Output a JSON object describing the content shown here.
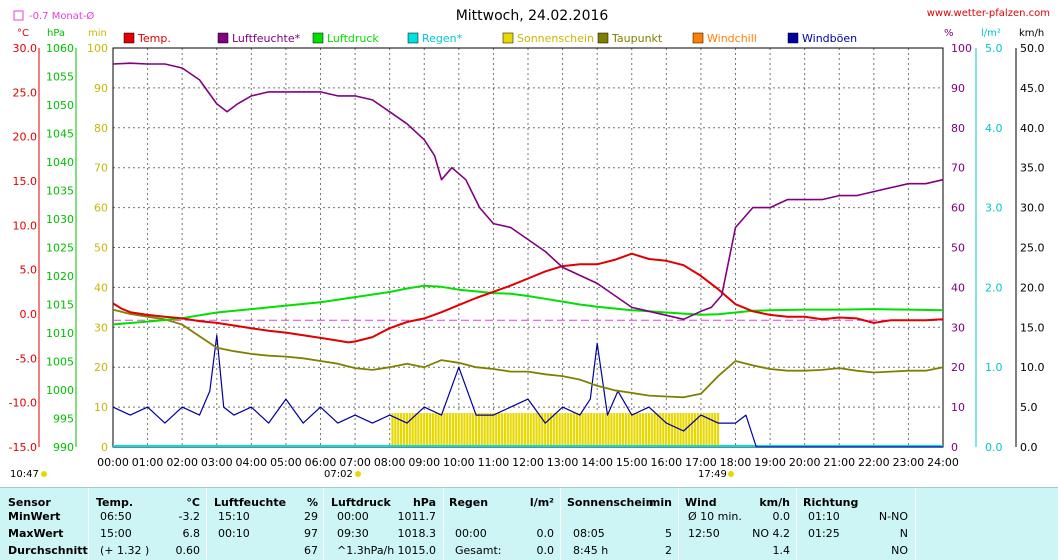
{
  "title": "Mittwoch, 24.02.2016",
  "site": "www.wetter-pfalzen.com",
  "month_avg_label": "-0.7 Monat-Ø",
  "units": {
    "temp": "°C",
    "pressure": "hPa",
    "minutes": "min",
    "percent": "%",
    "rain": "l/m²",
    "wind": "km/h"
  },
  "colors": {
    "temp": "#e00000",
    "humidity": "#800080",
    "pressure": "#00e000",
    "rain": "#00e0e0",
    "sun": "#e8d800",
    "dewpoint": "#808000",
    "windchill": "#ff8000",
    "gust": "#0000a0",
    "month_avg": "#e040e0"
  },
  "legend": [
    {
      "key": "temp",
      "label": "Temp."
    },
    {
      "key": "humidity",
      "label": "Luftfeuchte*"
    },
    {
      "key": "pressure",
      "label": "Luftdruck"
    },
    {
      "key": "rain",
      "label": "Regen*"
    },
    {
      "key": "sun",
      "label": "Sonnenschein"
    },
    {
      "key": "dewpoint",
      "label": "Taupunkt"
    },
    {
      "key": "windchill",
      "label": "Windchill"
    },
    {
      "key": "gust",
      "label": "Windböen"
    }
  ],
  "axis_ticks": {
    "temp": [
      "30.0",
      "25.0",
      "20.0",
      "15.0",
      "10.0",
      "5.0",
      "0.0",
      "-5.0",
      "-10.0",
      "-15.0"
    ],
    "pressure": [
      "1060",
      "1055",
      "1050",
      "1045",
      "1040",
      "1035",
      "1030",
      "1025",
      "1020",
      "1015",
      "1010",
      "1005",
      "1000",
      "995",
      "990"
    ],
    "minutes": [
      "100",
      "90",
      "80",
      "70",
      "60",
      "50",
      "40",
      "30",
      "20",
      "10",
      "0"
    ],
    "percent": [
      "100",
      "90",
      "80",
      "70",
      "60",
      "50",
      "40",
      "30",
      "20",
      "10",
      "0"
    ],
    "rain": [
      "5.0",
      "4.0",
      "3.0",
      "2.0",
      "1.0",
      "0.0"
    ],
    "wind": [
      "50.0",
      "45.0",
      "40.0",
      "35.0",
      "30.0",
      "25.0",
      "20.0",
      "15.0",
      "10.0",
      "5.0",
      "0.0"
    ],
    "hours": [
      "00:00",
      "01:00",
      "02:00",
      "03:00",
      "04:00",
      "05:00",
      "06:00",
      "07:00",
      "08:00",
      "09:00",
      "10:00",
      "11:00",
      "12:00",
      "13:00",
      "14:00",
      "15:00",
      "16:00",
      "17:00",
      "18:00",
      "19:00",
      "20:00",
      "21:00",
      "22:00",
      "23:00",
      "24:00"
    ]
  },
  "sun_times": {
    "moonrise": "10:47",
    "sunrise": "07:02",
    "sunset": "17:49"
  },
  "chart_data": {
    "type": "line",
    "title": "Mittwoch, 24.02.2016",
    "x_unit": "hours",
    "xlim": [
      0,
      24
    ],
    "ylim_temp": [
      -15,
      30
    ],
    "ylim_pressure": [
      990,
      1060
    ],
    "ylim_percent": [
      0,
      100
    ],
    "ylim_wind": [
      0,
      50
    ],
    "ylim_rain": [
      0,
      5
    ],
    "month_avg_temp": -0.7,
    "series": [
      {
        "name": "Temp.",
        "unit": "°C",
        "x": [
          0,
          0.25,
          0.5,
          1,
          1.5,
          2,
          2.5,
          3,
          3.5,
          4,
          4.5,
          5,
          5.5,
          6,
          6.5,
          6.8,
          7,
          7.5,
          8,
          8.5,
          9,
          9.5,
          10,
          10.5,
          11,
          11.5,
          12,
          12.5,
          13,
          13.5,
          14,
          14.5,
          15,
          15.5,
          16,
          16.5,
          17,
          17.5,
          18,
          18.5,
          19,
          19.5,
          20,
          20.5,
          21,
          21.5,
          22,
          22.5,
          23,
          23.5,
          24
        ],
        "values": [
          1.2,
          0.6,
          0.2,
          -0.1,
          -0.3,
          -0.5,
          -0.8,
          -1.0,
          -1.3,
          -1.6,
          -1.9,
          -2.1,
          -2.4,
          -2.7,
          -3.0,
          -3.2,
          -3.1,
          -2.6,
          -1.6,
          -0.9,
          -0.5,
          0.2,
          1.0,
          1.8,
          2.5,
          3.2,
          4.0,
          4.8,
          5.4,
          5.6,
          5.6,
          6.1,
          6.8,
          6.2,
          6.0,
          5.5,
          4.3,
          2.8,
          1.1,
          0.3,
          -0.1,
          -0.3,
          -0.3,
          -0.6,
          -0.4,
          -0.5,
          -1.0,
          -0.7,
          -0.7,
          -0.7,
          -0.6
        ]
      },
      {
        "name": "Luftfeuchte*",
        "unit": "%",
        "x": [
          0,
          0.5,
          1,
          1.5,
          2,
          2.5,
          3,
          3.3,
          3.6,
          4,
          4.5,
          5,
          5.5,
          6,
          6.5,
          7,
          7.5,
          8,
          8.5,
          9,
          9.3,
          9.5,
          9.8,
          10.2,
          10.6,
          11,
          11.5,
          12,
          12.5,
          13,
          13.5,
          14,
          14.5,
          15,
          15.5,
          16,
          16.5,
          17,
          17.3,
          17.6,
          18,
          18.5,
          19,
          19.5,
          20,
          20.5,
          21,
          21.5,
          22,
          22.5,
          23,
          23.5,
          24
        ],
        "values": [
          96,
          96.2,
          96,
          96,
          95,
          92,
          86,
          84,
          86,
          88,
          89,
          89,
          89,
          89,
          88,
          88,
          87,
          84,
          81,
          77,
          73,
          67,
          70,
          67,
          60,
          56,
          55,
          52,
          49,
          45,
          43,
          41,
          38,
          35,
          34,
          33,
          32,
          34,
          35,
          38,
          55,
          60,
          60,
          62,
          62,
          62,
          63,
          63,
          64,
          65,
          66,
          66,
          67
        ]
      },
      {
        "name": "Luftdruck",
        "unit": "hPa",
        "x": [
          0,
          1,
          2,
          3,
          4,
          5,
          6,
          7,
          8,
          8.5,
          9,
          9.5,
          10,
          10.5,
          11,
          11.5,
          12,
          12.5,
          13,
          13.5,
          14,
          14.5,
          15,
          15.5,
          16,
          16.5,
          17,
          17.5,
          18,
          18.5,
          19,
          20,
          21,
          22,
          23,
          24
        ],
        "values": [
          1011.5,
          1012.0,
          1012.6,
          1013.6,
          1014.2,
          1014.8,
          1015.4,
          1016.3,
          1017.2,
          1017.8,
          1018.3,
          1018.1,
          1017.6,
          1017.3,
          1017.0,
          1016.9,
          1016.5,
          1016.0,
          1015.5,
          1015.0,
          1014.6,
          1014.3,
          1014.0,
          1013.8,
          1013.6,
          1013.4,
          1013.2,
          1013.3,
          1013.6,
          1013.9,
          1014.0,
          1014.1,
          1014.1,
          1014.2,
          1014.1,
          1014.0
        ]
      },
      {
        "name": "Taupunkt",
        "unit": "°C",
        "x": [
          0,
          0.5,
          1,
          1.5,
          2,
          2.5,
          3,
          3.5,
          4,
          4.5,
          5,
          5.5,
          6,
          6.5,
          7,
          7.5,
          8,
          8.5,
          9,
          9.5,
          10,
          10.5,
          11,
          11.5,
          12,
          12.5,
          13,
          13.5,
          14,
          14.5,
          15,
          15.5,
          16,
          16.5,
          17,
          17.5,
          18,
          18.5,
          19,
          19.5,
          20,
          20.5,
          21,
          21.5,
          22,
          22.5,
          23,
          23.5,
          24
        ],
        "values": [
          0.5,
          0.0,
          -0.3,
          -0.6,
          -1.2,
          -2.5,
          -3.8,
          -4.2,
          -4.5,
          -4.7,
          -4.8,
          -5.0,
          -5.3,
          -5.6,
          -6.1,
          -6.3,
          -6.0,
          -5.6,
          -6.0,
          -5.2,
          -5.5,
          -6.0,
          -6.2,
          -6.5,
          -6.5,
          -6.8,
          -7.0,
          -7.4,
          -8.1,
          -8.6,
          -8.9,
          -9.2,
          -9.3,
          -9.4,
          -9.0,
          -7.0,
          -5.3,
          -5.8,
          -6.2,
          -6.4,
          -6.4,
          -6.3,
          -6.1,
          -6.4,
          -6.6,
          -6.5,
          -6.4,
          -6.4,
          -6.0
        ]
      },
      {
        "name": "Windböen",
        "unit": "km/h",
        "x": [
          0,
          0.5,
          1,
          1.5,
          2,
          2.5,
          2.8,
          3.0,
          3.2,
          3.5,
          4,
          4.5,
          5,
          5.5,
          6,
          6.5,
          7,
          7.5,
          8,
          8.5,
          9,
          9.5,
          10,
          10.5,
          11,
          11.5,
          12,
          12.5,
          13,
          13.5,
          13.8,
          14,
          14.3,
          14.6,
          15,
          15.5,
          16,
          16.5,
          17,
          17.5,
          18,
          18.3,
          18.6,
          24
        ],
        "values": [
          5,
          4,
          5,
          3,
          5,
          4,
          7,
          14,
          5,
          4,
          5,
          3,
          6,
          3,
          5,
          3,
          4,
          3,
          4,
          3,
          5,
          4,
          10,
          4,
          4,
          5,
          6,
          3,
          5,
          4,
          6,
          13,
          4,
          7,
          4,
          5,
          3,
          2,
          4,
          3,
          3,
          4,
          0,
          0
        ]
      },
      {
        "name": "Sonnenschein",
        "unit": "min",
        "x": [
          8.05,
          8.5,
          9,
          9.5,
          10,
          10.5,
          11,
          11.5,
          12,
          12.5,
          13,
          13.5,
          14,
          14.5,
          15,
          15.5,
          16,
          16.5,
          17,
          17.5
        ],
        "values": [
          5,
          5,
          5,
          5,
          5,
          5,
          5,
          5,
          5,
          5,
          5,
          5,
          5,
          5,
          5,
          5,
          5,
          5,
          5,
          5
        ]
      },
      {
        "name": "Regen*",
        "unit": "l/m²",
        "x": [
          0,
          24
        ],
        "values": [
          0,
          0
        ]
      }
    ]
  },
  "stats": {
    "header": {
      "sensor": "Sensor",
      "temp": "Temp.",
      "temp_unit": "°C",
      "hum": "Luftfeuchte",
      "hum_unit": "%",
      "press": "Luftdruck",
      "press_unit": "hPa",
      "rain": "Regen",
      "rain_unit": "l/m²",
      "sun": "Sonnenschein",
      "sun_unit": "min",
      "wind": "Wind",
      "wind_unit": "km/h",
      "dir": "Richtung"
    },
    "rows": [
      {
        "label": "MinWert",
        "temp_time": "06:50",
        "temp_val": "-3.2",
        "hum_time": "15:10",
        "hum_val": "29",
        "press_time": "00:00",
        "press_val": "1011.7",
        "rain_time": "",
        "rain_val": "",
        "sun_time": "",
        "sun_val": "",
        "wind_time": "Ø 10 min.",
        "wind_val": "0.0",
        "dir_time": "01:10",
        "dir_val": "N-NO"
      },
      {
        "label": "MaxWert",
        "temp_time": "15:00",
        "temp_val": "6.8",
        "hum_time": "00:10",
        "hum_val": "97",
        "press_time": "09:30",
        "press_val": "1018.3",
        "rain_time": "00:00",
        "rain_val": "0.0",
        "sun_time": "08:05",
        "sun_val": "5",
        "wind_time": "12:50",
        "wind_val": "NO 4.2",
        "dir_time": "01:25",
        "dir_val": "N"
      },
      {
        "label": "Durchschnitt",
        "temp_time": "(+ 1.32 )",
        "temp_val": "0.60",
        "hum_time": "",
        "hum_val": "67",
        "press_time": "^1.3hPa/h",
        "press_val": "1015.0",
        "rain_time": "Gesamt:",
        "rain_val": "0.0",
        "sun_time": "8:45 h",
        "sun_val": "2",
        "wind_time": "",
        "wind_val": "1.4",
        "dir_time": "",
        "dir_val": "NO"
      }
    ]
  }
}
